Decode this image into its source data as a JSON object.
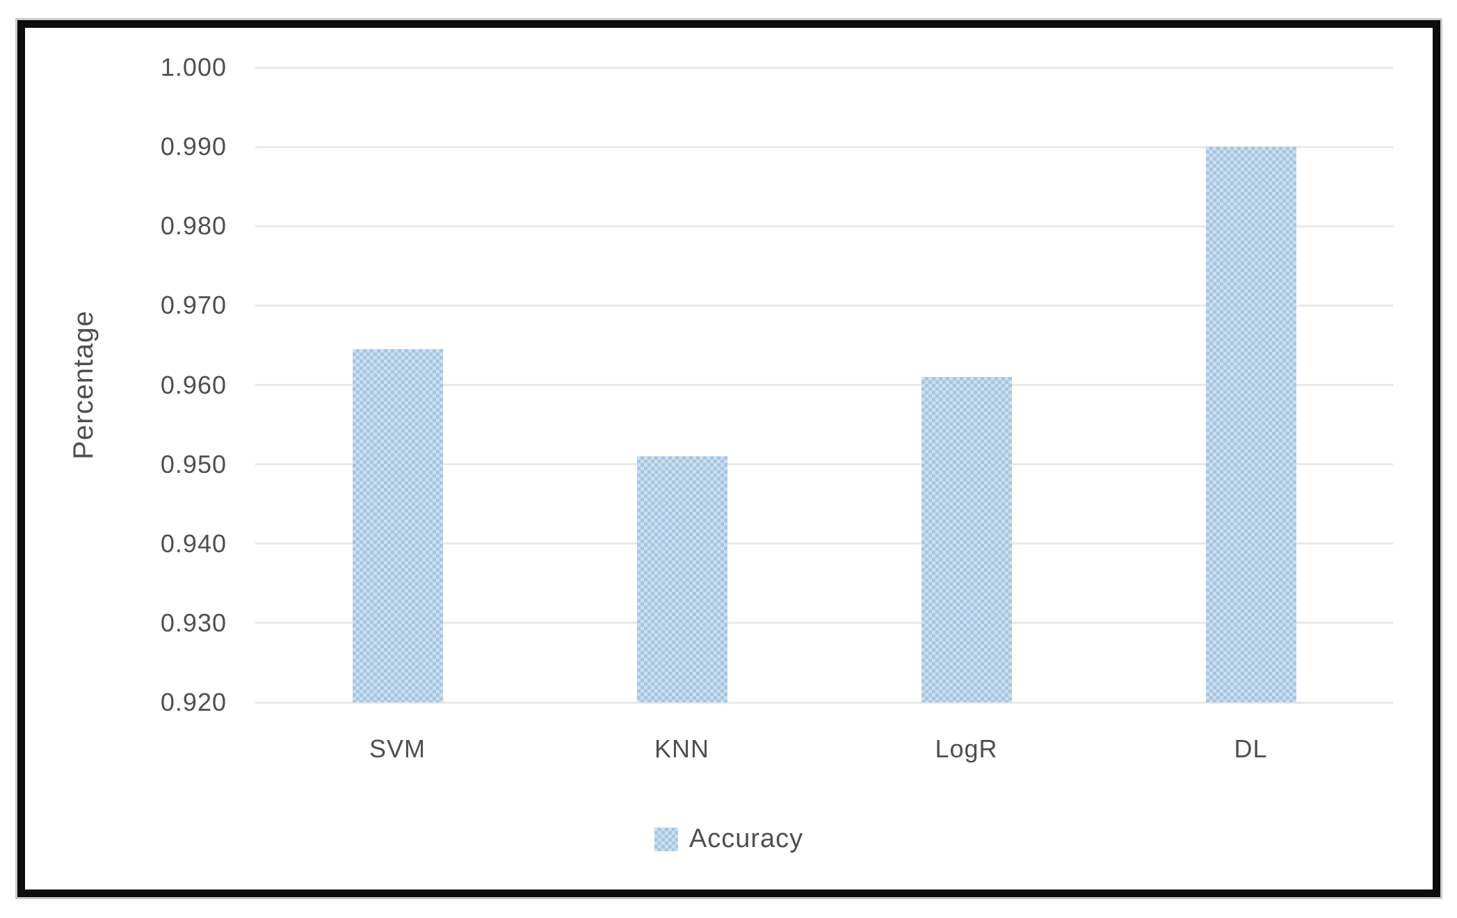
{
  "chart_data": {
    "type": "bar",
    "title": "",
    "xlabel": "",
    "ylabel": "Percentage",
    "categories": [
      "SVM",
      "KNN",
      "LogR",
      "DL"
    ],
    "series": [
      {
        "name": "Accuracy",
        "values": [
          0.9645,
          0.951,
          0.961,
          0.99
        ]
      }
    ],
    "ylim": [
      0.92,
      1.0
    ],
    "ytick_step": 0.01,
    "yticks": [
      "1.000",
      "0.990",
      "0.980",
      "0.970",
      "0.960",
      "0.950",
      "0.940",
      "0.930",
      "0.920"
    ],
    "grid": true,
    "legend": {
      "position": "bottom-center",
      "entries": [
        "Accuracy"
      ]
    },
    "colors": {
      "bar_pattern_dark": "#a7c6e2",
      "bar_pattern_light": "#cbdeee",
      "gridline": "#e9e9e9",
      "text": "#4f4f4f",
      "frame_border": "#0c0c0c"
    },
    "bar_fill_style": "checkerboard-pattern"
  }
}
